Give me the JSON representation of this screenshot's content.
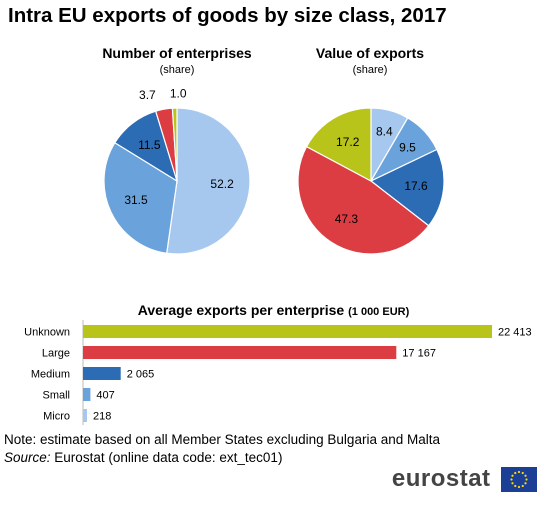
{
  "title": "Intra EU exports of goods by size class, 2017",
  "chart_data": [
    {
      "type": "pie",
      "title": "Number of enterprises",
      "subtitle": "(share)",
      "slices": [
        {
          "label": "Micro",
          "value": 52.2,
          "display": "52.2",
          "color": "#a6c8ee"
        },
        {
          "label": "Small",
          "value": 31.5,
          "display": "31.5",
          "color": "#6aa3dc"
        },
        {
          "label": "Medium",
          "value": 11.5,
          "display": "11.5",
          "color": "#2b6cb5"
        },
        {
          "label": "Large",
          "value": 3.7,
          "display": "3.7",
          "color": "#db3d43"
        },
        {
          "label": "Unknown",
          "value": 1.0,
          "display": "1.0",
          "color": "#b9c41a"
        }
      ]
    },
    {
      "type": "pie",
      "title": "Value of exports",
      "subtitle": "(share)",
      "slices": [
        {
          "label": "Micro",
          "value": 8.4,
          "display": "8.4",
          "color": "#a6c8ee"
        },
        {
          "label": "Small",
          "value": 9.5,
          "display": "9.5",
          "color": "#6aa3dc"
        },
        {
          "label": "Medium",
          "value": 17.6,
          "display": "17.6",
          "color": "#2b6cb5"
        },
        {
          "label": "Large",
          "value": 47.3,
          "display": "47.3",
          "color": "#db3d43"
        },
        {
          "label": "Unknown",
          "value": 17.2,
          "display": "17.2",
          "color": "#b9c41a"
        }
      ]
    },
    {
      "type": "bar",
      "orientation": "horizontal",
      "title": "Average exports per enterprise",
      "unit": "(1 000 EUR)",
      "categories": [
        "Unknown",
        "Large",
        "Medium",
        "Small",
        "Micro"
      ],
      "values": [
        22413,
        17167,
        2065,
        407,
        218
      ],
      "value_labels": [
        "22 413",
        "17 167",
        "2 065",
        "407",
        "218"
      ],
      "colors": [
        "#b9c41a",
        "#db3d43",
        "#2b6cb5",
        "#6aa3dc",
        "#a6c8ee"
      ]
    }
  ],
  "footer": {
    "note": "Note: estimate based on all Member States excluding Bulgaria and Malta",
    "source_label": "Source:",
    "source_text": "Eurostat (online data code: ext_tec01)",
    "brand": "eurostat"
  }
}
